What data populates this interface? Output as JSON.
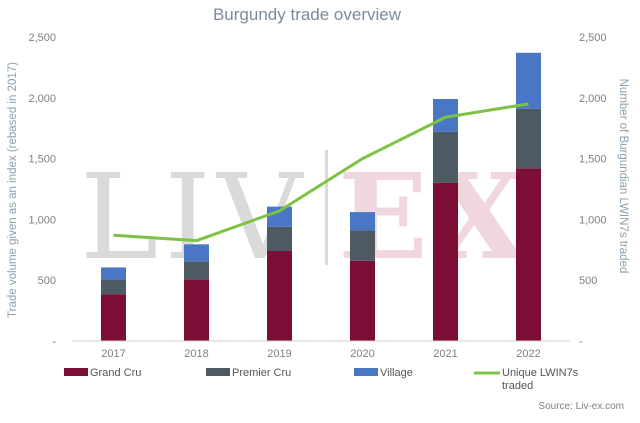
{
  "chart_data": {
    "type": "bar",
    "title": "Burgundy trade overview",
    "categories": [
      "2017",
      "2018",
      "2019",
      "2020",
      "2021",
      "2022"
    ],
    "stacked": true,
    "series": [
      {
        "name": "Grand Cru",
        "type": "bar",
        "axis": "left",
        "color": "#7b0d36",
        "values": [
          385,
          505,
          740,
          660,
          1300,
          1420
        ]
      },
      {
        "name": "Premier Cru",
        "type": "bar",
        "axis": "left",
        "color": "#4d5a63",
        "values": [
          120,
          150,
          200,
          250,
          420,
          490
        ]
      },
      {
        "name": "Village",
        "type": "bar",
        "axis": "left",
        "color": "#4a76c6",
        "values": [
          100,
          140,
          165,
          150,
          270,
          460
        ]
      },
      {
        "name": "Unique LWIN7s traded",
        "type": "line",
        "axis": "right",
        "color": "#7dc242",
        "values": [
          870,
          825,
          1070,
          1500,
          1840,
          1950
        ]
      }
    ],
    "yaxis_left": {
      "label": "Trade volume given as an index (rebased in 2017)",
      "ylim": [
        0,
        2500
      ],
      "ticks": [
        "-",
        "500",
        "1,000",
        "1,500",
        "2,000",
        "2,500"
      ]
    },
    "yaxis_right": {
      "label": "Number of Burgundian LWIN7s traded",
      "ylim": [
        0,
        2500
      ],
      "ticks": [
        "-",
        "500",
        "1,000",
        "1,500",
        "2,000",
        "2,500"
      ]
    },
    "legend": {
      "position": "bottom",
      "items": [
        "Grand Cru",
        "Premier Cru",
        "Village",
        "Unique LWIN7s traded"
      ]
    },
    "grid": false,
    "watermark": {
      "left": "LIV",
      "right": "EX"
    },
    "source": "Source: Liv-ex.com"
  }
}
